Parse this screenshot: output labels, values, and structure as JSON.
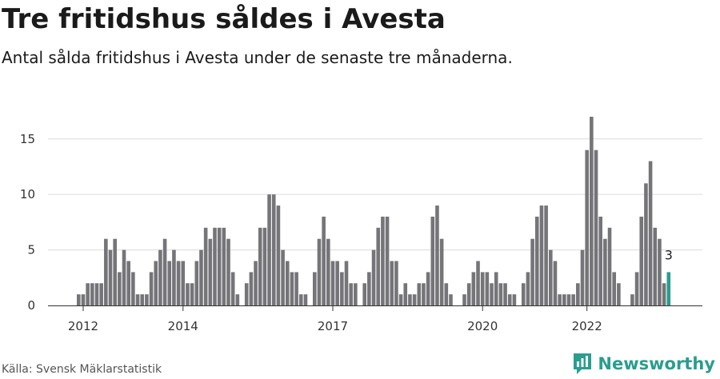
{
  "header": {
    "title": "Tre fritidshus såldes i Avesta",
    "subtitle": "Antal sålda fritidshus i Avesta under de senaste tre månaderna."
  },
  "footer": {
    "source": "Källa: Svensk Mäklarstatistik",
    "brand": "Newsworthy",
    "brand_icon": "newsworthy-logo-icon",
    "brand_color": "#2a9d8f"
  },
  "chart_data": {
    "type": "bar",
    "title": "Tre fritidshus såldes i Avesta",
    "subtitle": "Antal sålda fritidshus i Avesta under de senaste tre månaderna.",
    "xlabel": "",
    "ylabel": "",
    "ylim": [
      0,
      17
    ],
    "yticks": [
      0,
      5,
      10,
      15
    ],
    "grid": true,
    "x_tick_labels": [
      "2012",
      "2014",
      "2017",
      "2020",
      "2022"
    ],
    "x_tick_index": [
      1,
      23,
      56,
      89,
      112
    ],
    "colors": {
      "default": "#757579",
      "highlight": "#2a9d8f"
    },
    "values": [
      1,
      1,
      2,
      2,
      2,
      2,
      6,
      5,
      6,
      3,
      5,
      4,
      3,
      1,
      1,
      1,
      3,
      4,
      5,
      6,
      4,
      5,
      4,
      4,
      2,
      2,
      4,
      5,
      7,
      6,
      7,
      7,
      7,
      6,
      3,
      1,
      0,
      2,
      3,
      4,
      7,
      7,
      10,
      10,
      9,
      5,
      4,
      3,
      3,
      1,
      1,
      0,
      3,
      6,
      8,
      6,
      4,
      4,
      3,
      4,
      2,
      2,
      0,
      2,
      3,
      5,
      7,
      8,
      8,
      4,
      4,
      1,
      2,
      1,
      1,
      2,
      2,
      3,
      8,
      9,
      6,
      2,
      1,
      0,
      0,
      1,
      2,
      3,
      4,
      3,
      3,
      2,
      3,
      2,
      2,
      1,
      1,
      0,
      2,
      3,
      6,
      8,
      9,
      9,
      5,
      4,
      1,
      1,
      1,
      1,
      2,
      5,
      14,
      17,
      14,
      8,
      6,
      7,
      3,
      2,
      0,
      0,
      1,
      3,
      8,
      11,
      13,
      7,
      6,
      2,
      3
    ],
    "highlight_index": 130,
    "highlight_label": "3"
  }
}
